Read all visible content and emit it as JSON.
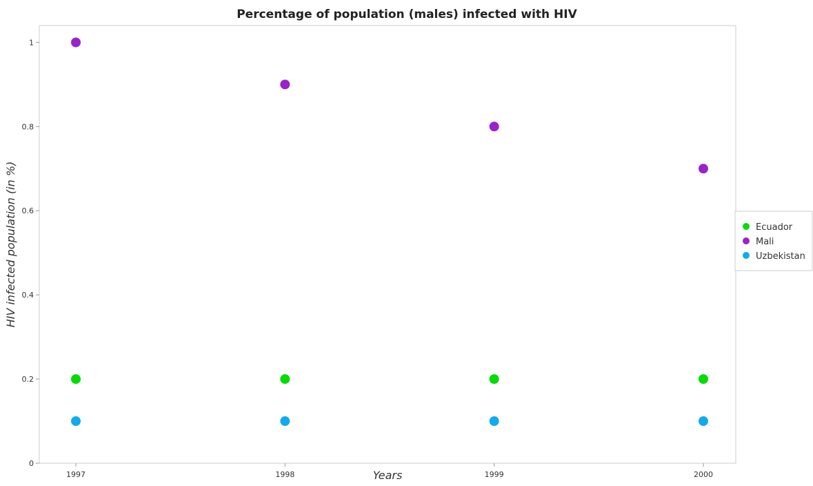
{
  "chart_data": {
    "type": "scatter",
    "title": "Percentage of population (males) infected with HIV",
    "xlabel": "Years",
    "ylabel": "HIV infected population (in %)",
    "categories": [
      "1997",
      "1998",
      "1999",
      "2000"
    ],
    "ylim": [
      0,
      1.04
    ],
    "yticks": [
      "0",
      "0.2",
      "0.4",
      "0.6",
      "0.8",
      "1"
    ],
    "ytick_values": [
      0,
      0.2,
      0.4,
      0.6,
      0.8,
      1.0
    ],
    "grid": false,
    "legend_position": "right",
    "series": [
      {
        "name": "Ecuador",
        "color": "#00dd00",
        "values": [
          0.2,
          0.2,
          0.2,
          0.2
        ]
      },
      {
        "name": "Mali",
        "color": "#9922cc",
        "values": [
          1.0,
          0.9,
          0.8,
          0.7
        ]
      },
      {
        "name": "Uzbekistan",
        "color": "#11aaee",
        "values": [
          0.1,
          0.1,
          0.1,
          0.1
        ]
      }
    ]
  }
}
